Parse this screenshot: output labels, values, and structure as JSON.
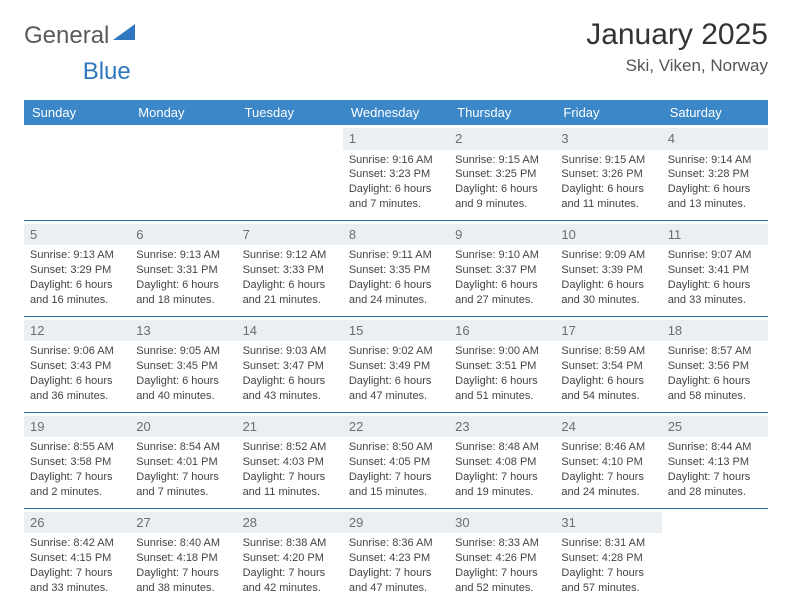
{
  "brand": {
    "word1": "General",
    "word2": "Blue"
  },
  "title": "January 2025",
  "location": "Ski, Viken, Norway",
  "colors": {
    "header_bg": "#3b87c8",
    "header_text": "#ffffff",
    "daynum_bg": "#eceff1",
    "daynum_text": "#6d6d6d",
    "cell_border": "#2f6fa8",
    "logo_gray": "#5a5a5a",
    "logo_blue": "#2f78bf"
  },
  "dayHeaders": [
    "Sunday",
    "Monday",
    "Tuesday",
    "Wednesday",
    "Thursday",
    "Friday",
    "Saturday"
  ],
  "weeks": [
    [
      {
        "blank": true
      },
      {
        "blank": true
      },
      {
        "blank": true
      },
      {
        "n": "1",
        "sr": "Sunrise: 9:16 AM",
        "ss": "Sunset: 3:23 PM",
        "d1": "Daylight: 6 hours",
        "d2": "and 7 minutes."
      },
      {
        "n": "2",
        "sr": "Sunrise: 9:15 AM",
        "ss": "Sunset: 3:25 PM",
        "d1": "Daylight: 6 hours",
        "d2": "and 9 minutes."
      },
      {
        "n": "3",
        "sr": "Sunrise: 9:15 AM",
        "ss": "Sunset: 3:26 PM",
        "d1": "Daylight: 6 hours",
        "d2": "and 11 minutes."
      },
      {
        "n": "4",
        "sr": "Sunrise: 9:14 AM",
        "ss": "Sunset: 3:28 PM",
        "d1": "Daylight: 6 hours",
        "d2": "and 13 minutes."
      }
    ],
    [
      {
        "n": "5",
        "sr": "Sunrise: 9:13 AM",
        "ss": "Sunset: 3:29 PM",
        "d1": "Daylight: 6 hours",
        "d2": "and 16 minutes."
      },
      {
        "n": "6",
        "sr": "Sunrise: 9:13 AM",
        "ss": "Sunset: 3:31 PM",
        "d1": "Daylight: 6 hours",
        "d2": "and 18 minutes."
      },
      {
        "n": "7",
        "sr": "Sunrise: 9:12 AM",
        "ss": "Sunset: 3:33 PM",
        "d1": "Daylight: 6 hours",
        "d2": "and 21 minutes."
      },
      {
        "n": "8",
        "sr": "Sunrise: 9:11 AM",
        "ss": "Sunset: 3:35 PM",
        "d1": "Daylight: 6 hours",
        "d2": "and 24 minutes."
      },
      {
        "n": "9",
        "sr": "Sunrise: 9:10 AM",
        "ss": "Sunset: 3:37 PM",
        "d1": "Daylight: 6 hours",
        "d2": "and 27 minutes."
      },
      {
        "n": "10",
        "sr": "Sunrise: 9:09 AM",
        "ss": "Sunset: 3:39 PM",
        "d1": "Daylight: 6 hours",
        "d2": "and 30 minutes."
      },
      {
        "n": "11",
        "sr": "Sunrise: 9:07 AM",
        "ss": "Sunset: 3:41 PM",
        "d1": "Daylight: 6 hours",
        "d2": "and 33 minutes."
      }
    ],
    [
      {
        "n": "12",
        "sr": "Sunrise: 9:06 AM",
        "ss": "Sunset: 3:43 PM",
        "d1": "Daylight: 6 hours",
        "d2": "and 36 minutes."
      },
      {
        "n": "13",
        "sr": "Sunrise: 9:05 AM",
        "ss": "Sunset: 3:45 PM",
        "d1": "Daylight: 6 hours",
        "d2": "and 40 minutes."
      },
      {
        "n": "14",
        "sr": "Sunrise: 9:03 AM",
        "ss": "Sunset: 3:47 PM",
        "d1": "Daylight: 6 hours",
        "d2": "and 43 minutes."
      },
      {
        "n": "15",
        "sr": "Sunrise: 9:02 AM",
        "ss": "Sunset: 3:49 PM",
        "d1": "Daylight: 6 hours",
        "d2": "and 47 minutes."
      },
      {
        "n": "16",
        "sr": "Sunrise: 9:00 AM",
        "ss": "Sunset: 3:51 PM",
        "d1": "Daylight: 6 hours",
        "d2": "and 51 minutes."
      },
      {
        "n": "17",
        "sr": "Sunrise: 8:59 AM",
        "ss": "Sunset: 3:54 PM",
        "d1": "Daylight: 6 hours",
        "d2": "and 54 minutes."
      },
      {
        "n": "18",
        "sr": "Sunrise: 8:57 AM",
        "ss": "Sunset: 3:56 PM",
        "d1": "Daylight: 6 hours",
        "d2": "and 58 minutes."
      }
    ],
    [
      {
        "n": "19",
        "sr": "Sunrise: 8:55 AM",
        "ss": "Sunset: 3:58 PM",
        "d1": "Daylight: 7 hours",
        "d2": "and 2 minutes."
      },
      {
        "n": "20",
        "sr": "Sunrise: 8:54 AM",
        "ss": "Sunset: 4:01 PM",
        "d1": "Daylight: 7 hours",
        "d2": "and 7 minutes."
      },
      {
        "n": "21",
        "sr": "Sunrise: 8:52 AM",
        "ss": "Sunset: 4:03 PM",
        "d1": "Daylight: 7 hours",
        "d2": "and 11 minutes."
      },
      {
        "n": "22",
        "sr": "Sunrise: 8:50 AM",
        "ss": "Sunset: 4:05 PM",
        "d1": "Daylight: 7 hours",
        "d2": "and 15 minutes."
      },
      {
        "n": "23",
        "sr": "Sunrise: 8:48 AM",
        "ss": "Sunset: 4:08 PM",
        "d1": "Daylight: 7 hours",
        "d2": "and 19 minutes."
      },
      {
        "n": "24",
        "sr": "Sunrise: 8:46 AM",
        "ss": "Sunset: 4:10 PM",
        "d1": "Daylight: 7 hours",
        "d2": "and 24 minutes."
      },
      {
        "n": "25",
        "sr": "Sunrise: 8:44 AM",
        "ss": "Sunset: 4:13 PM",
        "d1": "Daylight: 7 hours",
        "d2": "and 28 minutes."
      }
    ],
    [
      {
        "n": "26",
        "sr": "Sunrise: 8:42 AM",
        "ss": "Sunset: 4:15 PM",
        "d1": "Daylight: 7 hours",
        "d2": "and 33 minutes."
      },
      {
        "n": "27",
        "sr": "Sunrise: 8:40 AM",
        "ss": "Sunset: 4:18 PM",
        "d1": "Daylight: 7 hours",
        "d2": "and 38 minutes."
      },
      {
        "n": "28",
        "sr": "Sunrise: 8:38 AM",
        "ss": "Sunset: 4:20 PM",
        "d1": "Daylight: 7 hours",
        "d2": "and 42 minutes."
      },
      {
        "n": "29",
        "sr": "Sunrise: 8:36 AM",
        "ss": "Sunset: 4:23 PM",
        "d1": "Daylight: 7 hours",
        "d2": "and 47 minutes."
      },
      {
        "n": "30",
        "sr": "Sunrise: 8:33 AM",
        "ss": "Sunset: 4:26 PM",
        "d1": "Daylight: 7 hours",
        "d2": "and 52 minutes."
      },
      {
        "n": "31",
        "sr": "Sunrise: 8:31 AM",
        "ss": "Sunset: 4:28 PM",
        "d1": "Daylight: 7 hours",
        "d2": "and 57 minutes."
      },
      {
        "blank": true
      }
    ]
  ]
}
